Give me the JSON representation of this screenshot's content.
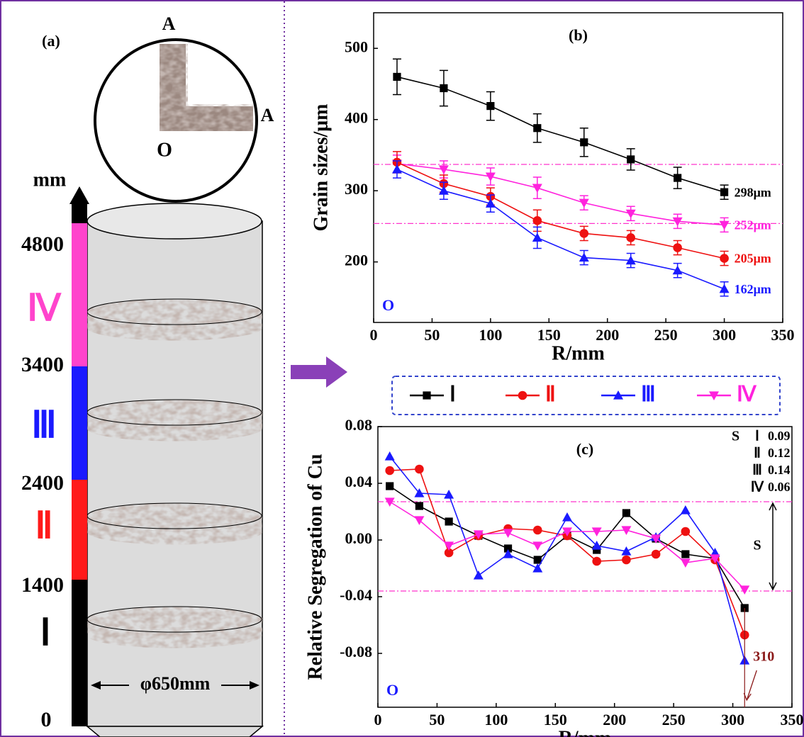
{
  "panel_a": {
    "label": "(a)",
    "section_labels": [
      "A",
      "A",
      "O"
    ],
    "unit": "mm",
    "heights": [
      4800,
      3400,
      2400,
      1400,
      0
    ],
    "zones": [
      "Ⅳ",
      "Ⅲ",
      "Ⅱ",
      "Ⅰ"
    ],
    "diameter": "φ650mm"
  },
  "chart_data": [
    {
      "type": "line",
      "title": "(b)",
      "x_label": "R/mm",
      "y_label": "Grain sizes/μm",
      "origin_label": "O",
      "xlim": [
        0,
        350
      ],
      "xticks": [
        0,
        50,
        100,
        150,
        200,
        250,
        300,
        350
      ],
      "ylim": [
        115,
        550
      ],
      "yticks": [
        200,
        300,
        400,
        500
      ],
      "x": [
        20,
        60,
        100,
        140,
        180,
        220,
        260,
        300
      ],
      "reference_lines": [
        337,
        254
      ],
      "reference_color": "#ff33cc",
      "series": [
        {
          "color": "#000000",
          "marker": "square",
          "values": [
            460,
            444,
            419,
            388,
            368,
            344,
            318,
            298
          ],
          "errors": [
            25,
            25,
            20,
            20,
            20,
            15,
            15,
            10
          ],
          "end_label": "298μm"
        },
        {
          "color": "#ff22dd",
          "marker": "triangle-down",
          "values": [
            338,
            330,
            320,
            304,
            283,
            268,
            257,
            252
          ],
          "errors": [
            12,
            12,
            12,
            15,
            10,
            10,
            10,
            10
          ],
          "end_label": "252μm"
        },
        {
          "color": "#ee1111",
          "marker": "circle",
          "values": [
            340,
            310,
            292,
            258,
            240,
            234,
            220,
            205
          ],
          "errors": [
            15,
            12,
            12,
            15,
            10,
            10,
            10,
            10
          ],
          "end_label": "205μm"
        },
        {
          "color": "#1a1aff",
          "marker": "triangle-up",
          "values": [
            330,
            300,
            282,
            234,
            206,
            202,
            188,
            162
          ],
          "errors": [
            12,
            12,
            12,
            15,
            10,
            10,
            10,
            10
          ],
          "end_label": "162μm"
        }
      ]
    },
    {
      "type": "line",
      "title": "(c)",
      "x_label": "R/mm",
      "y_label": "Relative Segregation of Cu",
      "origin_label": "O",
      "xlim": [
        0,
        350
      ],
      "xticks": [
        0,
        50,
        100,
        150,
        200,
        250,
        300,
        350
      ],
      "ylim": [
        -0.118,
        0.08
      ],
      "yticks": [
        -0.08,
        -0.04,
        {
          "value": 0,
          "label": "0.00"
        },
        0.04,
        0.08
      ],
      "x": [
        10,
        35,
        60,
        85,
        110,
        135,
        160,
        185,
        210,
        235,
        260,
        285,
        310
      ],
      "reference_lines": [
        0.027,
        -0.036
      ],
      "reference_color": "#ff33cc",
      "s_label": "S",
      "x_annotation": 310,
      "s_table": {
        "header": "S",
        "rows": [
          [
            "Ⅰ",
            0.09
          ],
          [
            "Ⅱ",
            0.12
          ],
          [
            "Ⅲ",
            0.14
          ],
          [
            "Ⅳ",
            0.06
          ]
        ]
      },
      "series": [
        {
          "name": "Ⅰ",
          "color": "#000000",
          "marker": "square",
          "values": [
            0.038,
            0.024,
            0.013,
            0.003,
            -0.006,
            -0.014,
            0.003,
            -0.007,
            0.019,
            0.001,
            -0.01,
            -0.013,
            -0.048
          ]
        },
        {
          "name": "Ⅱ",
          "color": "#ee1111",
          "marker": "circle",
          "values": [
            0.049,
            0.05,
            -0.009,
            0.003,
            0.008,
            0.007,
            0.003,
            -0.015,
            -0.014,
            -0.01,
            0.006,
            -0.014,
            -0.067
          ]
        },
        {
          "name": "Ⅲ",
          "color": "#1a1aff",
          "marker": "triangle-up",
          "values": [
            0.059,
            0.033,
            0.032,
            -0.025,
            -0.01,
            -0.02,
            0.016,
            -0.004,
            -0.008,
            0.002,
            0.021,
            -0.009,
            -0.085
          ]
        },
        {
          "name": "Ⅳ",
          "color": "#ff22dd",
          "marker": "triangle-down",
          "values": [
            0.027,
            0.014,
            -0.004,
            0.004,
            0.005,
            -0.004,
            0.006,
            0.006,
            0.007,
            0.001,
            -0.016,
            -0.013,
            -0.035
          ]
        }
      ]
    }
  ]
}
